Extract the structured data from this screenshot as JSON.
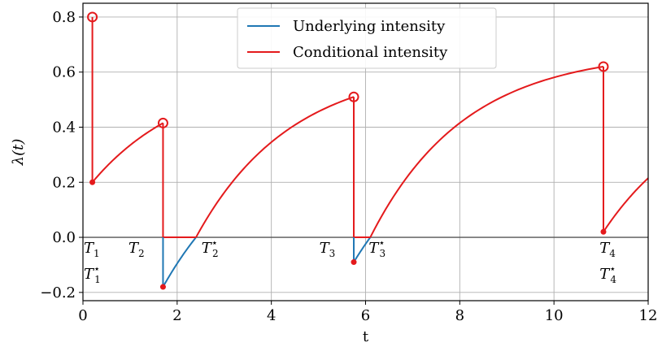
{
  "chart_data": {
    "type": "line",
    "title": "",
    "xlabel": "t",
    "ylabel": "λ(t)",
    "xlim": [
      0,
      12
    ],
    "ylim": [
      -0.23,
      0.85
    ],
    "xticks": [
      0,
      2,
      4,
      6,
      8,
      10,
      12
    ],
    "yticks": [
      -0.2,
      0.0,
      0.2,
      0.4,
      0.6,
      0.8
    ],
    "ytick_labels": [
      "−0.2",
      "0.0",
      "0.2",
      "0.4",
      "0.6",
      "0.8"
    ],
    "grid": true,
    "legend": "top-center",
    "colors": {
      "underlying": "#1f77b4",
      "conditional": "#e41a1c",
      "zero_line": "#555555"
    },
    "series": [
      {
        "name": "Underlying intensity",
        "segments": [
          {
            "t_start": 1.7,
            "t_end": 2.4,
            "y_start": -0.18,
            "y_end": 0.0
          },
          {
            "t_start": 5.75,
            "t_end": 6.1,
            "y_start": -0.09,
            "y_end": 0.0
          }
        ]
      },
      {
        "name": "Conditional intensity",
        "segments": [
          {
            "t_start": 0.2,
            "t_end": 1.7,
            "y_start": 0.2,
            "y_end": 0.415
          },
          {
            "t_start": 1.7,
            "t_end": 2.4,
            "y_start": 0.0,
            "y_end": 0.0
          },
          {
            "t_start": 2.4,
            "t_end": 5.75,
            "y_start": 0.0,
            "y_end": 0.51
          },
          {
            "t_start": 5.75,
            "t_end": 6.1,
            "y_start": 0.0,
            "y_end": 0.0
          },
          {
            "t_start": 6.1,
            "t_end": 11.05,
            "y_start": 0.0,
            "y_end": 0.62
          },
          {
            "t_start": 11.05,
            "t_end": 12.0,
            "y_start": 0.02,
            "y_end": 0.215
          }
        ],
        "jumps": [
          {
            "t": 0.2,
            "before": 0.8,
            "after": 0.2
          },
          {
            "t": 1.7,
            "before": 0.415,
            "after": -0.18
          },
          {
            "t": 5.75,
            "before": 0.51,
            "after": -0.09
          },
          {
            "t": 11.05,
            "before": 0.62,
            "after": 0.02
          }
        ]
      }
    ],
    "event_labels": [
      {
        "base": "T",
        "sub": "1",
        "star": false,
        "t": 0.0,
        "row": 0
      },
      {
        "base": "T",
        "sub": "1",
        "star": true,
        "t": 0.0,
        "row": 1
      },
      {
        "base": "T",
        "sub": "2",
        "star": false,
        "t": 0.95,
        "row": 0
      },
      {
        "base": "T",
        "sub": "2",
        "star": true,
        "t": 2.5,
        "row": 0
      },
      {
        "base": "T",
        "sub": "3",
        "star": false,
        "t": 5.0,
        "row": 0
      },
      {
        "base": "T",
        "sub": "3",
        "star": true,
        "t": 6.05,
        "row": 0
      },
      {
        "base": "T",
        "sub": "4",
        "star": false,
        "t": 10.95,
        "row": 0
      },
      {
        "base": "T",
        "sub": "4",
        "star": true,
        "t": 10.95,
        "row": 1
      }
    ]
  }
}
